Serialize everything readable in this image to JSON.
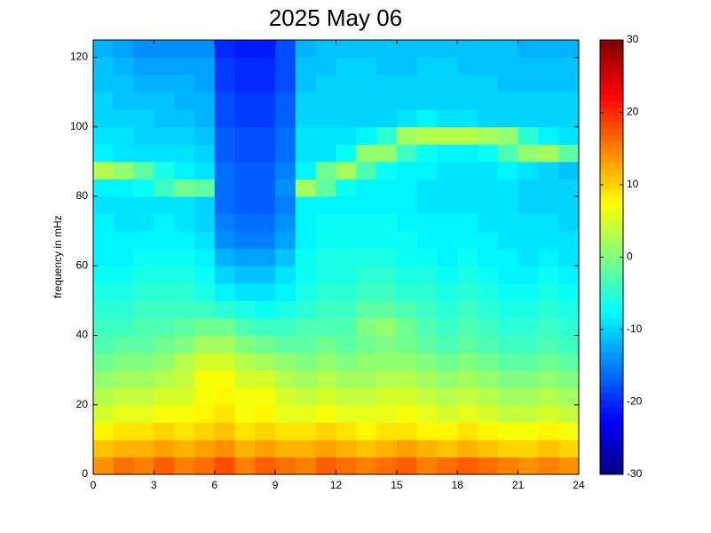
{
  "chart_data": {
    "type": "heatmap",
    "title": "2025 May 06",
    "ylabel": "frequency in mHz",
    "x": [
      0.5,
      1.5,
      2.5,
      3.5,
      4.5,
      5.5,
      6.5,
      7.5,
      8.5,
      9.5,
      10.5,
      11.5,
      12.5,
      13.5,
      14.5,
      15.5,
      16.5,
      17.5,
      18.5,
      19.5,
      20.5,
      21.5,
      22.5,
      23.5
    ],
    "y": [
      2.5,
      7.5,
      12.5,
      17.5,
      22.5,
      27.5,
      32.5,
      37.5,
      42.5,
      47.5,
      52.5,
      57.5,
      62.5,
      67.5,
      72.5,
      77.5,
      82.5,
      87.5,
      92.5,
      97.5,
      102.5,
      107.5,
      112.5,
      117.5,
      122.5
    ],
    "z": [
      [
        14,
        16,
        15,
        17,
        15,
        16,
        18,
        15,
        17,
        16,
        15,
        17,
        16,
        15,
        16,
        17,
        15,
        16,
        17,
        16,
        15,
        14,
        15,
        14
      ],
      [
        11,
        12,
        12,
        13,
        12,
        13,
        14,
        12,
        13,
        12,
        12,
        13,
        12,
        11,
        12,
        13,
        12,
        11,
        12,
        11,
        10,
        10,
        11,
        10
      ],
      [
        8,
        9,
        9,
        10,
        9,
        10,
        11,
        9,
        10,
        9,
        9,
        10,
        9,
        8,
        9,
        9,
        8,
        8,
        9,
        8,
        7,
        7,
        8,
        7
      ],
      [
        5,
        6,
        6,
        7,
        7,
        8,
        9,
        7,
        8,
        6,
        6,
        7,
        6,
        6,
        6,
        7,
        6,
        5,
        6,
        5,
        4,
        4,
        5,
        4
      ],
      [
        3,
        4,
        4,
        5,
        5,
        7,
        8,
        7,
        7,
        5,
        4,
        5,
        4,
        4,
        5,
        5,
        4,
        3,
        4,
        3,
        2,
        2,
        3,
        2
      ],
      [
        1,
        2,
        2,
        3,
        4,
        7,
        7,
        5,
        5,
        3,
        2,
        3,
        2,
        2,
        3,
        3,
        2,
        1,
        2,
        1,
        0,
        0,
        1,
        0
      ],
      [
        -1,
        0,
        0,
        1,
        3,
        5,
        5,
        3,
        2,
        1,
        0,
        1,
        0,
        1,
        1,
        1,
        0,
        -1,
        0,
        -1,
        -2,
        -2,
        -1,
        -2
      ],
      [
        -3,
        -2,
        -2,
        -1,
        0,
        2,
        2,
        0,
        -1,
        -2,
        -2,
        -1,
        -2,
        -1,
        0,
        -1,
        -2,
        -3,
        -2,
        -3,
        -4,
        -4,
        -3,
        -4
      ],
      [
        -4,
        -4,
        -3,
        -3,
        -2,
        -1,
        -1,
        -3,
        -4,
        -4,
        -3,
        -3,
        -3,
        0,
        1,
        -1,
        -3,
        -4,
        -3,
        -4,
        -5,
        -5,
        -4,
        -5
      ],
      [
        -5,
        -5,
        -4,
        -4,
        -4,
        -4,
        -5,
        -6,
        -7,
        -6,
        -5,
        -4,
        -4,
        -2,
        -2,
        -3,
        -4,
        -5,
        -4,
        -5,
        -6,
        -6,
        -5,
        -6
      ],
      [
        -6,
        -6,
        -5,
        -5,
        -5,
        -6,
        -8,
        -9,
        -9,
        -8,
        -6,
        -5,
        -5,
        -4,
        -4,
        -5,
        -5,
        -6,
        -5,
        -6,
        -7,
        -7,
        -6,
        -7
      ],
      [
        -7,
        -7,
        -6,
        -6,
        -6,
        -7,
        -10,
        -11,
        -11,
        -9,
        -7,
        -6,
        -6,
        -5,
        -5,
        -6,
        -6,
        -7,
        -6,
        -7,
        -8,
        -8,
        -7,
        -8
      ],
      [
        -8,
        -8,
        -7,
        -7,
        -7,
        -8,
        -12,
        -13,
        -13,
        -11,
        -7,
        -6,
        -6,
        -6,
        -6,
        -7,
        -7,
        -8,
        -7,
        -8,
        -8,
        -9,
        -8,
        -9
      ],
      [
        -8,
        -8,
        -8,
        -8,
        -8,
        -9,
        -14,
        -15,
        -15,
        -13,
        -8,
        -7,
        -7,
        -7,
        -7,
        -7,
        -8,
        -8,
        -8,
        -8,
        -9,
        -9,
        -9,
        -9
      ],
      [
        -8,
        -9,
        -9,
        -8,
        -9,
        -10,
        -15,
        -16,
        -16,
        -14,
        -8,
        -7,
        -7,
        -7,
        -7,
        -8,
        -8,
        -8,
        -8,
        -9,
        -9,
        -9,
        -9,
        -10
      ],
      [
        -9,
        -9,
        -9,
        -9,
        -9,
        -10,
        -16,
        -17,
        -17,
        -15,
        -8,
        -8,
        -8,
        -8,
        -8,
        -8,
        -9,
        -9,
        -9,
        -9,
        -9,
        -10,
        -10,
        -10
      ],
      [
        -8,
        -8,
        -7,
        -4,
        -1,
        -2,
        -16,
        -17,
        -17,
        -14,
        2,
        -2,
        -7,
        -8,
        -8,
        -8,
        -9,
        -9,
        -9,
        -9,
        -9,
        -10,
        -10,
        -10
      ],
      [
        3,
        1,
        -2,
        -6,
        -8,
        -9,
        -16,
        -17,
        -17,
        -15,
        -8,
        -1,
        2,
        -3,
        -7,
        -8,
        -8,
        -9,
        -9,
        -9,
        -8,
        -9,
        -10,
        -11
      ],
      [
        -8,
        -9,
        -9,
        -9,
        -9,
        -10,
        -17,
        -18,
        -18,
        -16,
        -9,
        -9,
        -7,
        1,
        1,
        -4,
        -7,
        -8,
        -8,
        -7,
        -3,
        1,
        2,
        -2
      ],
      [
        -9,
        -9,
        -10,
        -10,
        -10,
        -11,
        -17,
        -18,
        -18,
        -16,
        -9,
        -9,
        -9,
        -8,
        -5,
        2,
        3,
        3,
        3,
        2,
        1,
        -5,
        -8,
        -9
      ],
      [
        -10,
        -10,
        -10,
        -11,
        -11,
        -12,
        -18,
        -19,
        -19,
        -17,
        -10,
        -10,
        -10,
        -10,
        -10,
        -9,
        -8,
        -9,
        -9,
        -10,
        -10,
        -10,
        -10,
        -10
      ],
      [
        -10,
        -11,
        -11,
        -11,
        -12,
        -12,
        -18,
        -19,
        -19,
        -17,
        -10,
        -10,
        -10,
        -10,
        -10,
        -10,
        -10,
        -10,
        -10,
        -10,
        -10,
        -10,
        -10,
        -10
      ],
      [
        -11,
        -11,
        -12,
        -12,
        -12,
        -13,
        -19,
        -20,
        -20,
        -18,
        -11,
        -10,
        -10,
        -10,
        -10,
        -10,
        -10,
        -10,
        -10,
        -10,
        -11,
        -11,
        -11,
        -11
      ],
      [
        -11,
        -12,
        -13,
        -13,
        -13,
        -13,
        -19,
        -20,
        -20,
        -18,
        -11,
        -11,
        -10,
        -10,
        -11,
        -11,
        -10,
        -10,
        -11,
        -11,
        -11,
        -11,
        -11,
        -11
      ],
      [
        -12,
        -13,
        -14,
        -14,
        -14,
        -14,
        -20,
        -21,
        -21,
        -18,
        -12,
        -11,
        -11,
        -11,
        -11,
        -11,
        -11,
        -11,
        -11,
        -11,
        -11,
        -12,
        -12,
        -12
      ]
    ],
    "xlim": [
      0,
      24
    ],
    "xticks": [
      0,
      3,
      6,
      9,
      12,
      15,
      18,
      21,
      24
    ],
    "ylim": [
      0,
      125
    ],
    "yticks": [
      0,
      20,
      40,
      60,
      80,
      100,
      120
    ],
    "colormap": "jet",
    "clim": [
      -30,
      30
    ],
    "cticks": [
      -30,
      -20,
      -10,
      0,
      10,
      20,
      30
    ]
  }
}
